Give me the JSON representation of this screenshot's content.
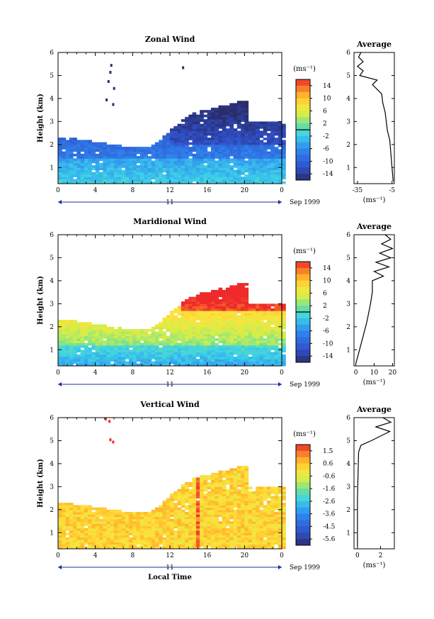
{
  "chart_data": [
    {
      "type": "heatmap",
      "title": "Zonal Wind",
      "ylabel": "Height (km)",
      "xticks": [
        "0",
        "4",
        "8",
        "12",
        "16",
        "20",
        "0"
      ],
      "yticks": [
        "1",
        "2",
        "3",
        "4",
        "5",
        "6"
      ],
      "xlim": [
        0,
        24
      ],
      "ylim": [
        0.3,
        6
      ],
      "date_axis": {
        "day_label": "11",
        "date_label": "Sep 1999"
      },
      "colorbar": {
        "unit": "(ms⁻¹)",
        "ticks": [
          "14",
          "10",
          "6",
          "2",
          "-2",
          "-6",
          "-10",
          "-14"
        ],
        "range": [
          -16,
          16
        ],
        "marker": 0
      },
      "profile": {
        "title": "Average",
        "xlabel": "(ms⁻¹)",
        "xticks": [
          "-35",
          "-5"
        ],
        "xlim": [
          -38,
          -3
        ],
        "points": [
          [
            -4,
            0.4
          ],
          [
            -5,
            1.0
          ],
          [
            -6,
            1.6
          ],
          [
            -7,
            2.2
          ],
          [
            -9,
            2.6
          ],
          [
            -10,
            3.0
          ],
          [
            -11,
            3.4
          ],
          [
            -13,
            3.8
          ],
          [
            -14,
            4.2
          ],
          [
            -22,
            4.6
          ],
          [
            -18,
            4.8
          ],
          [
            -33,
            5.0
          ],
          [
            -30,
            5.2
          ],
          [
            -35,
            5.4
          ],
          [
            -30,
            5.6
          ],
          [
            -34,
            5.8
          ],
          [
            -32,
            6.0
          ]
        ]
      }
    },
    {
      "type": "heatmap",
      "title": "Maridional Wind",
      "ylabel": "Height (km)",
      "xticks": [
        "0",
        "4",
        "8",
        "12",
        "16",
        "20",
        "0"
      ],
      "yticks": [
        "1",
        "2",
        "3",
        "4",
        "5",
        "6"
      ],
      "xlim": [
        0,
        24
      ],
      "ylim": [
        0.3,
        6
      ],
      "date_axis": {
        "day_label": "11",
        "date_label": "Sep 1999"
      },
      "colorbar": {
        "unit": "(ms⁻¹)",
        "ticks": [
          "14",
          "10",
          "6",
          "2",
          "-2",
          "-6",
          "-10",
          "-14"
        ],
        "range": [
          -16,
          16
        ],
        "marker": 0
      },
      "profile": {
        "title": "Average",
        "xlabel": "(ms⁻¹)",
        "xticks": [
          "0",
          "10",
          "20"
        ],
        "xlim": [
          -1,
          21
        ],
        "points": [
          [
            0,
            0.4
          ],
          [
            2,
            1.0
          ],
          [
            4,
            1.6
          ],
          [
            6,
            2.2
          ],
          [
            7,
            2.6
          ],
          [
            8,
            3.0
          ],
          [
            9,
            3.5
          ],
          [
            9,
            4.0
          ],
          [
            15,
            4.2
          ],
          [
            10,
            4.4
          ],
          [
            18,
            4.6
          ],
          [
            11,
            4.8
          ],
          [
            19,
            5.0
          ],
          [
            13,
            5.2
          ],
          [
            20,
            5.4
          ],
          [
            14,
            5.6
          ],
          [
            19,
            5.8
          ],
          [
            16,
            6.0
          ]
        ]
      }
    },
    {
      "type": "heatmap",
      "title": "Vertical Wind",
      "ylabel": "Height (km)",
      "xlabel": "Local Time",
      "xticks": [
        "0",
        "4",
        "8",
        "12",
        "16",
        "20",
        "0"
      ],
      "yticks": [
        "1",
        "2",
        "3",
        "4",
        "5",
        "6"
      ],
      "xlim": [
        0,
        24
      ],
      "ylim": [
        0.3,
        6
      ],
      "date_axis": {
        "day_label": "11",
        "date_label": "Sep 1999"
      },
      "colorbar": {
        "unit": "(ms⁻¹)",
        "ticks": [
          "1.5",
          "0.6",
          "-0.6",
          "-1.6",
          "-2.6",
          "-3.6",
          "-4.5",
          "-5.6"
        ],
        "range": [
          -6,
          2
        ]
      },
      "profile": {
        "title": "Average",
        "xlabel": "(ms⁻¹)",
        "xticks": [
          "0",
          "2"
        ],
        "xlim": [
          -0.3,
          3.2
        ],
        "points": [
          [
            0,
            0.4
          ],
          [
            0,
            1.5
          ],
          [
            0,
            2.5
          ],
          [
            0.05,
            3.5
          ],
          [
            0.1,
            4.5
          ],
          [
            0.3,
            4.8
          ],
          [
            1.2,
            5.0
          ],
          [
            2.0,
            5.2
          ],
          [
            2.8,
            5.4
          ],
          [
            1.6,
            5.6
          ],
          [
            2.9,
            5.8
          ],
          [
            2.2,
            6.0
          ]
        ]
      }
    }
  ]
}
